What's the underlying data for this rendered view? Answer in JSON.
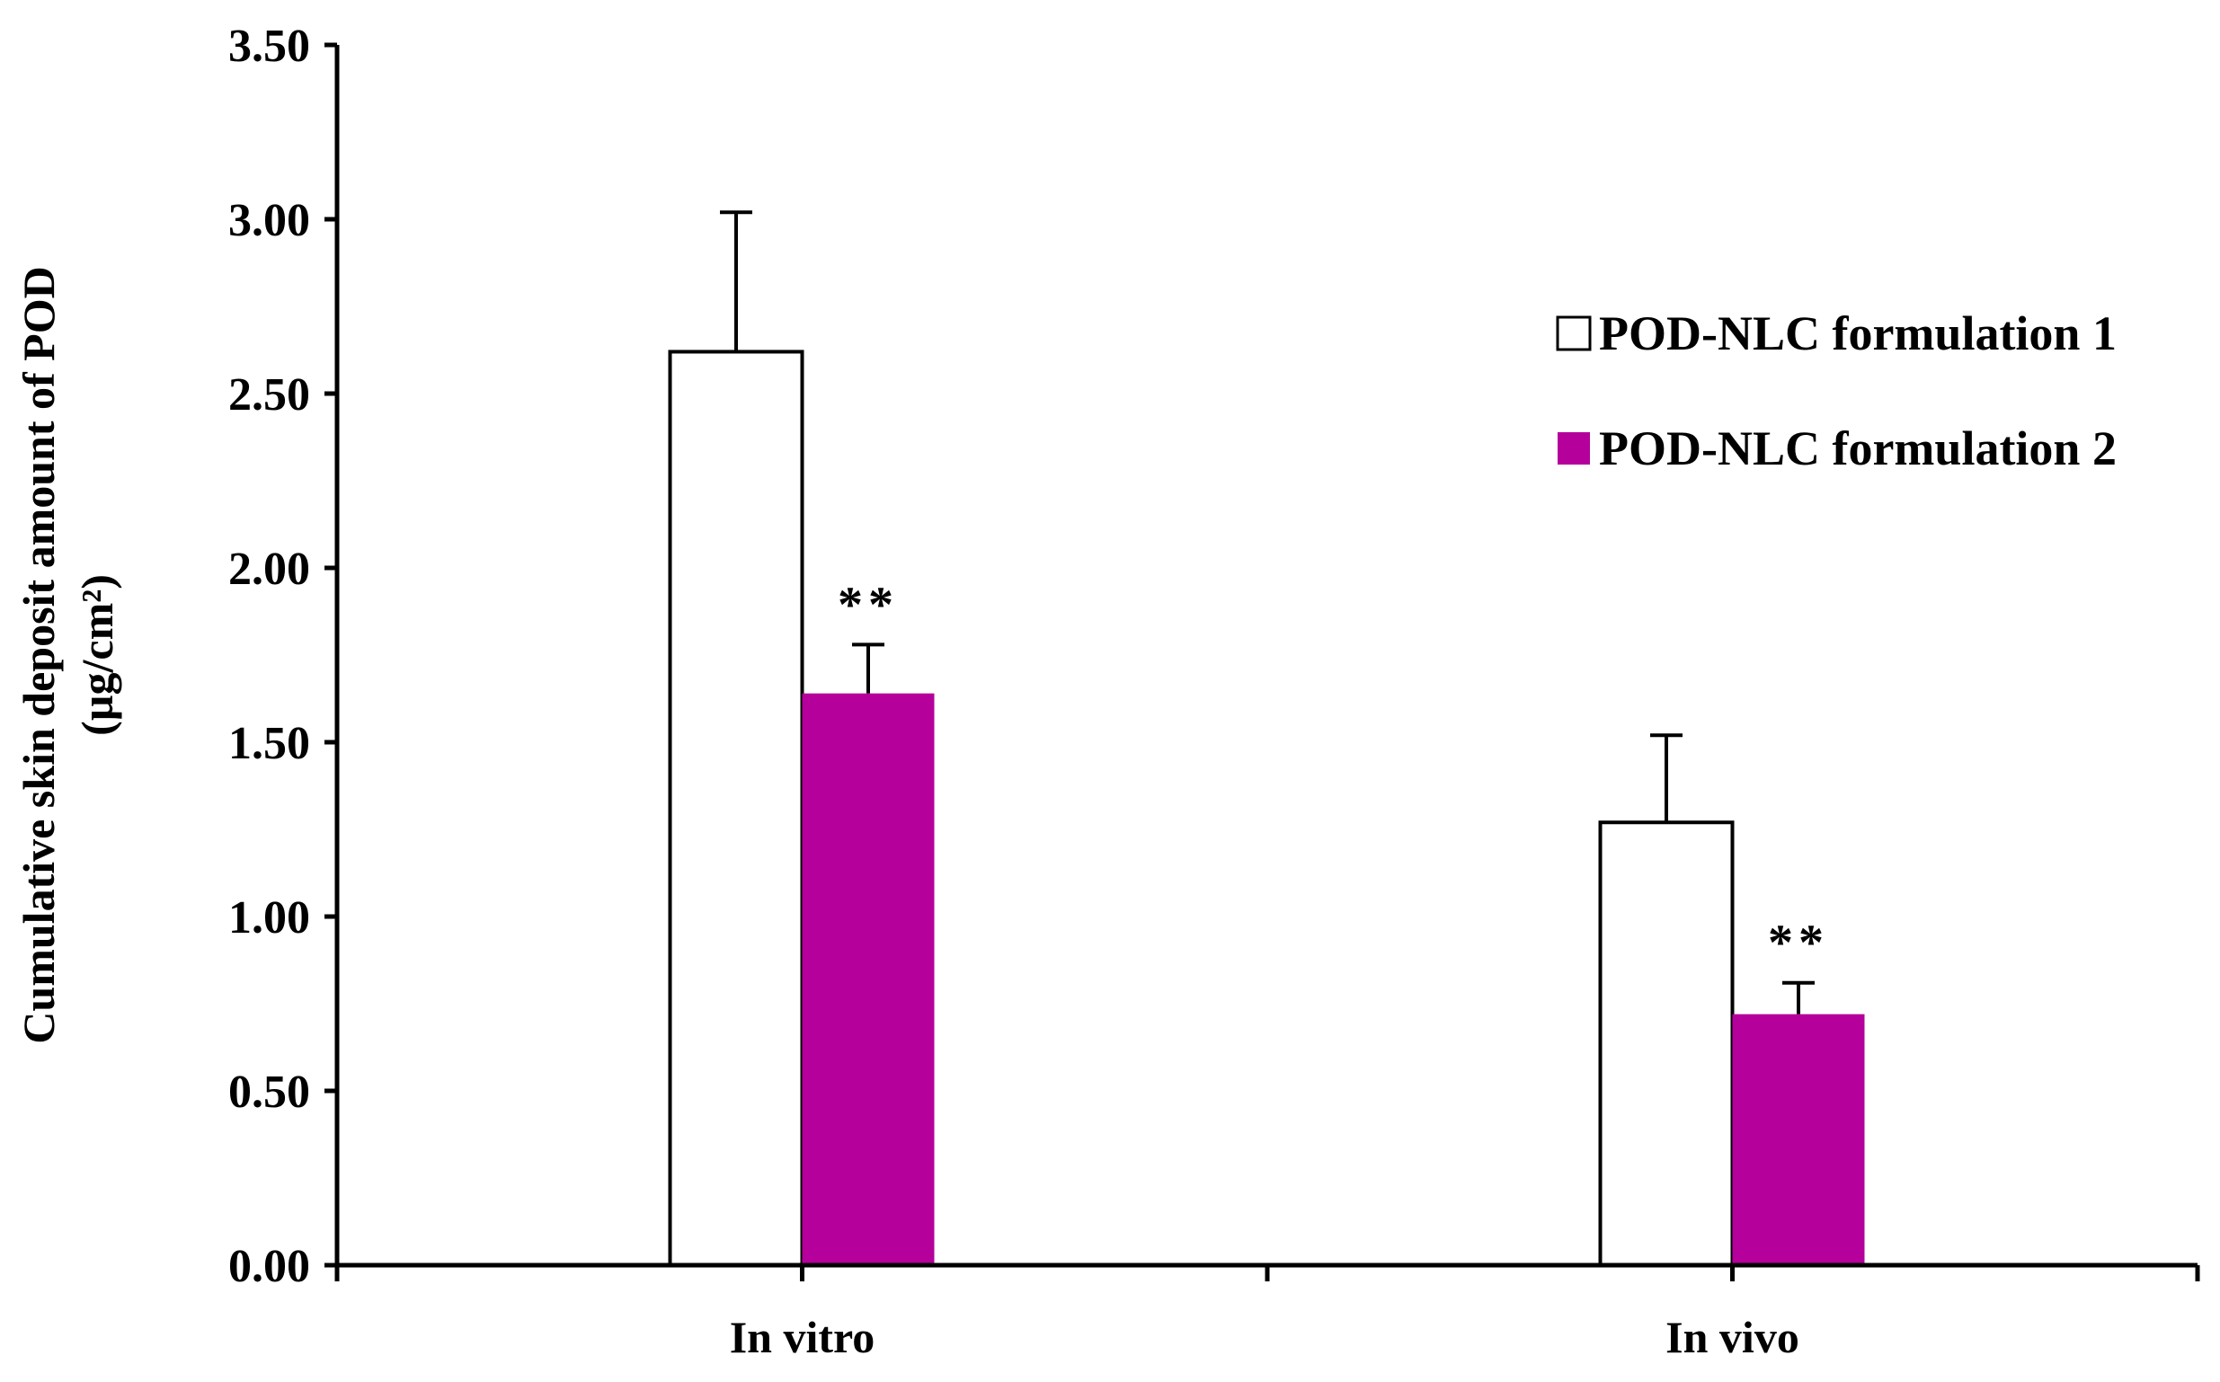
{
  "chart_data": {
    "type": "bar",
    "title": "",
    "xlabel": "",
    "ylabel": [
      "Cumulative skin  deposit amount of POD",
      "(µg/cm²)"
    ],
    "categories": [
      "In vitro",
      "In vivo"
    ],
    "ylim": [
      0,
      3.5
    ],
    "yticks": [
      "0.00",
      "0.50",
      "1.00",
      "1.50",
      "2.00",
      "2.50",
      "3.00",
      "3.50"
    ],
    "legend_position": "right",
    "grid": false,
    "series": [
      {
        "name": "POD-NLC formulation 1",
        "color": "#ffffff",
        "values": [
          2.62,
          1.27
        ],
        "errors": [
          0.4,
          0.25
        ],
        "annotations": [
          "",
          ""
        ]
      },
      {
        "name": "POD-NLC formulation 2",
        "color": "#b5009b",
        "values": [
          1.64,
          0.72
        ],
        "errors": [
          0.14,
          0.09
        ],
        "annotations": [
          "**",
          "**"
        ]
      }
    ]
  }
}
